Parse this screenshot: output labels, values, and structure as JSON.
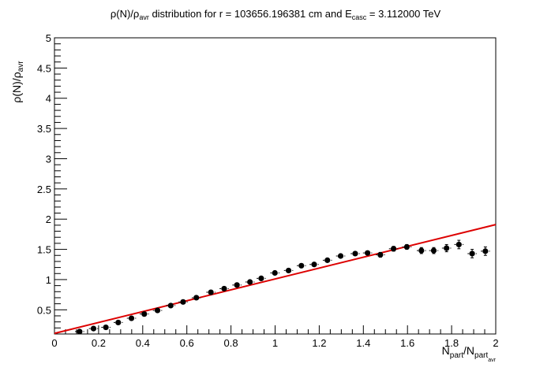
{
  "chart_data": {
    "type": "scatter",
    "title": {
      "p1": "ρ(N)/ρ",
      "p1_sub": "avr",
      "p2": " distribution for r = 103656.196381 cm and E",
      "p2_sub": "casc",
      "p3": " = 3.112000 TeV"
    },
    "xlabel": {
      "p1": "N",
      "p1_sub": "part",
      "p2": "/N",
      "p2_sub": "part",
      "p2_subsub": "avr"
    },
    "ylabel": {
      "p1": "ρ(N)/ρ",
      "p1_sub": "avr"
    },
    "xlim": [
      0,
      2
    ],
    "ylim": [
      0.1,
      5
    ],
    "xticks": [
      {
        "v": 0,
        "label": "0"
      },
      {
        "v": 0.2,
        "label": "0.2"
      },
      {
        "v": 0.4,
        "label": "0.4"
      },
      {
        "v": 0.6,
        "label": "0.6"
      },
      {
        "v": 0.8,
        "label": "0.8"
      },
      {
        "v": 1,
        "label": "1"
      },
      {
        "v": 1.2,
        "label": "1.2"
      },
      {
        "v": 1.4,
        "label": "1.4"
      },
      {
        "v": 1.6,
        "label": "1.6"
      },
      {
        "v": 1.8,
        "label": "1.8"
      },
      {
        "v": 2,
        "label": "2"
      }
    ],
    "yticks": [
      {
        "v": 0.5,
        "label": "0.5"
      },
      {
        "v": 1,
        "label": "1"
      },
      {
        "v": 1.5,
        "label": "1.5"
      },
      {
        "v": 2,
        "label": "2"
      },
      {
        "v": 2.5,
        "label": "2.5"
      },
      {
        "v": 3,
        "label": "3"
      },
      {
        "v": 3.5,
        "label": "3.5"
      },
      {
        "v": 4,
        "label": "4"
      },
      {
        "v": 4.5,
        "label": "4.5"
      },
      {
        "v": 5,
        "label": "5"
      }
    ],
    "xbin_halfwidth": 0.0208,
    "points": [
      {
        "x": 0.114,
        "y": 0.14,
        "err": 0.025
      },
      {
        "x": 0.177,
        "y": 0.19,
        "err": 0.025
      },
      {
        "x": 0.233,
        "y": 0.21,
        "err": 0.025
      },
      {
        "x": 0.289,
        "y": 0.29,
        "err": 0.025
      },
      {
        "x": 0.349,
        "y": 0.36,
        "err": 0.025
      },
      {
        "x": 0.407,
        "y": 0.43,
        "err": 0.025
      },
      {
        "x": 0.467,
        "y": 0.49,
        "err": 0.025
      },
      {
        "x": 0.527,
        "y": 0.57,
        "err": 0.025
      },
      {
        "x": 0.583,
        "y": 0.63,
        "err": 0.025
      },
      {
        "x": 0.643,
        "y": 0.7,
        "err": 0.025
      },
      {
        "x": 0.709,
        "y": 0.79,
        "err": 0.025
      },
      {
        "x": 0.769,
        "y": 0.85,
        "err": 0.025
      },
      {
        "x": 0.827,
        "y": 0.91,
        "err": 0.025
      },
      {
        "x": 0.886,
        "y": 0.96,
        "err": 0.025
      },
      {
        "x": 0.937,
        "y": 1.02,
        "err": 0.025
      },
      {
        "x": 0.999,
        "y": 1.11,
        "err": 0.03
      },
      {
        "x": 1.061,
        "y": 1.15,
        "err": 0.03
      },
      {
        "x": 1.119,
        "y": 1.23,
        "err": 0.03
      },
      {
        "x": 1.177,
        "y": 1.25,
        "err": 0.03
      },
      {
        "x": 1.237,
        "y": 1.32,
        "err": 0.03
      },
      {
        "x": 1.297,
        "y": 1.39,
        "err": 0.03
      },
      {
        "x": 1.363,
        "y": 1.43,
        "err": 0.03
      },
      {
        "x": 1.419,
        "y": 1.44,
        "err": 0.03
      },
      {
        "x": 1.477,
        "y": 1.41,
        "err": 0.04
      },
      {
        "x": 1.537,
        "y": 1.51,
        "err": 0.04
      },
      {
        "x": 1.597,
        "y": 1.54,
        "err": 0.04
      },
      {
        "x": 1.663,
        "y": 1.48,
        "err": 0.05
      },
      {
        "x": 1.719,
        "y": 1.48,
        "err": 0.05
      },
      {
        "x": 1.777,
        "y": 1.52,
        "err": 0.06
      },
      {
        "x": 1.833,
        "y": 1.58,
        "err": 0.07
      },
      {
        "x": 1.893,
        "y": 1.43,
        "err": 0.07
      },
      {
        "x": 1.953,
        "y": 1.47,
        "err": 0.07
      }
    ],
    "fit_line": {
      "x": [
        0,
        2
      ],
      "y": [
        0.11,
        1.91
      ],
      "color": "#dd0000"
    },
    "grid": false,
    "legend": "none",
    "marker_color": "#000000"
  }
}
